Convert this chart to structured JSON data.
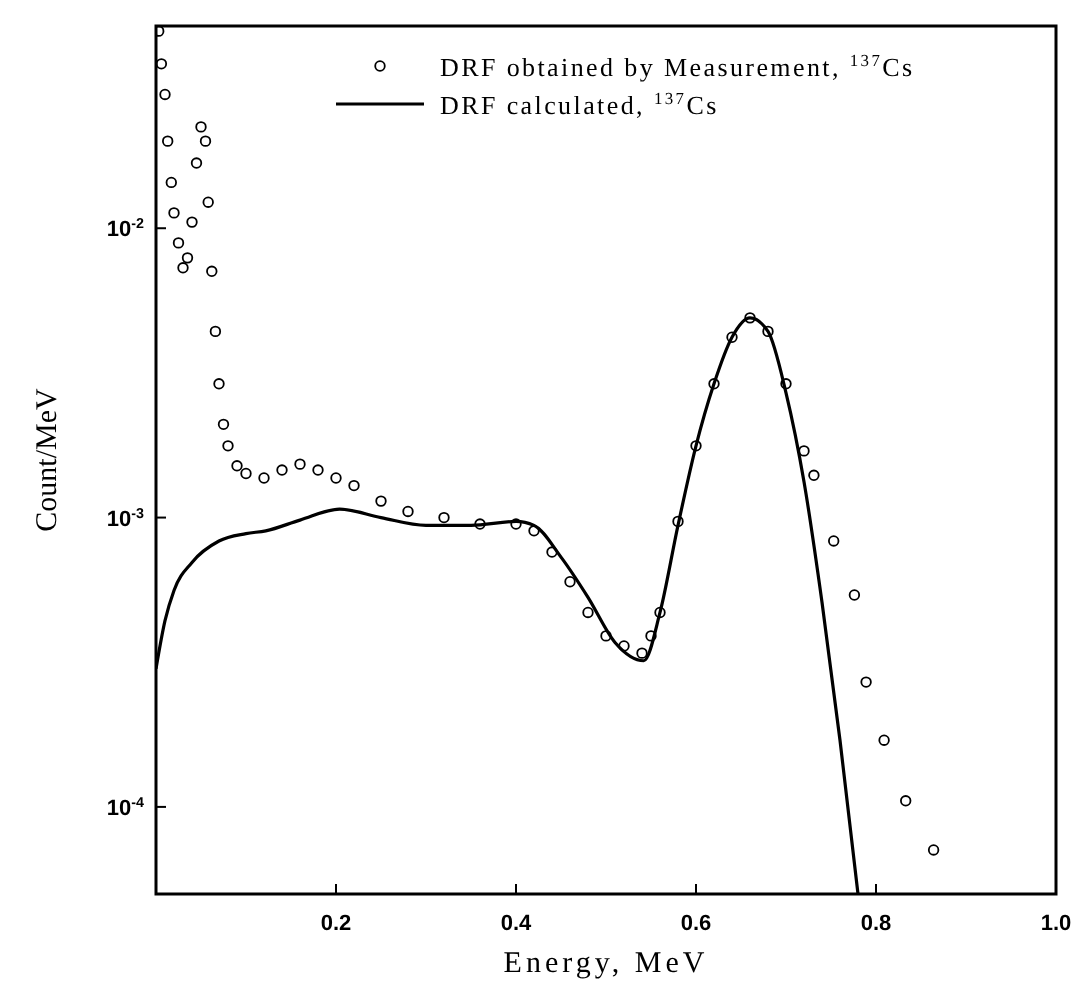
{
  "chart_data": {
    "type": "scatter",
    "xlabel": "Energy, MeV",
    "ylabel": "Count/MeV",
    "log": "y",
    "legend": "top right",
    "xlim": [
      0,
      1.0
    ],
    "xticks": [
      0.2,
      0.4,
      0.6,
      0.8,
      {
        "value": 1.0,
        "label": "1.0"
      }
    ],
    "ylim": [
      5e-05,
      0.05
    ],
    "yticks": [
      {
        "value": 0.0001,
        "label": "10$^{-4}$"
      },
      {
        "value": 0.001,
        "label": "10$^{-3}$"
      },
      {
        "value": 0.01,
        "label": "10$^{-2}$"
      }
    ],
    "series": [
      {
        "name": "DRF obtained by Measurement, $^{137}$Cs",
        "marker": "circle",
        "color": "#000000",
        "x": [
          0.003,
          0.006,
          0.01,
          0.013,
          0.017,
          0.02,
          0.025,
          0.03,
          0.035,
          0.04,
          0.045,
          0.05,
          0.055,
          0.058,
          0.062,
          0.066,
          0.07,
          0.075,
          0.08,
          0.09,
          0.1,
          0.12,
          0.14,
          0.16,
          0.18,
          0.2,
          0.22,
          0.25,
          0.28,
          0.32,
          0.36,
          0.4,
          0.42,
          0.44,
          0.46,
          0.48,
          0.5,
          0.52,
          0.54,
          0.55,
          0.56,
          0.58,
          0.6,
          0.62,
          0.64,
          0.66,
          0.68,
          0.7,
          0.72,
          0.731,
          0.753,
          0.776,
          0.789,
          0.809,
          0.833,
          0.864
        ],
        "values": [
          0.048,
          0.037,
          0.029,
          0.02,
          0.0144,
          0.0113,
          0.0089,
          0.0073,
          0.0079,
          0.0105,
          0.0168,
          0.0224,
          0.02,
          0.0123,
          0.0071,
          0.0044,
          0.0029,
          0.0021,
          0.00177,
          0.00151,
          0.00142,
          0.00137,
          0.00146,
          0.00153,
          0.00146,
          0.00137,
          0.00129,
          0.00114,
          0.00105,
          0.001,
          0.00095,
          0.00095,
          0.0009,
          0.00076,
          0.0006,
          0.00047,
          0.00039,
          0.00036,
          0.00034,
          0.00039,
          0.00047,
          0.00097,
          0.00177,
          0.0029,
          0.0042,
          0.0049,
          0.0044,
          0.0029,
          0.0017,
          0.0014,
          0.00083,
          0.00054,
          0.00027,
          0.00017,
          0.000105,
          7.1e-05
        ]
      },
      {
        "name": "DRF calculated, $^{137}$Cs",
        "type": "line",
        "line_style": "solid",
        "color": "#000000",
        "x": [
          0,
          0.01,
          0.02,
          0.04,
          0.07,
          0.1,
          0.122,
          0.16,
          0.204,
          0.25,
          0.3,
          0.35,
          0.4,
          0.42,
          0.45,
          0.48,
          0.51,
          0.542,
          0.56,
          0.58,
          0.6,
          0.62,
          0.64,
          0.66,
          0.68,
          0.7,
          0.72,
          0.74,
          0.76,
          0.78
        ],
        "values": [
          0.0003,
          0.00044,
          0.00056,
          0.0007,
          0.00083,
          0.00088,
          0.0009,
          0.00098,
          0.00107,
          0.001,
          0.00094,
          0.00094,
          0.00097,
          0.00094,
          0.00073,
          0.00053,
          0.00037,
          0.00032,
          0.00047,
          0.00094,
          0.00177,
          0.0029,
          0.0042,
          0.0049,
          0.0044,
          0.0027,
          0.00133,
          0.00051,
          0.00017,
          5e-05
        ]
      }
    ]
  }
}
